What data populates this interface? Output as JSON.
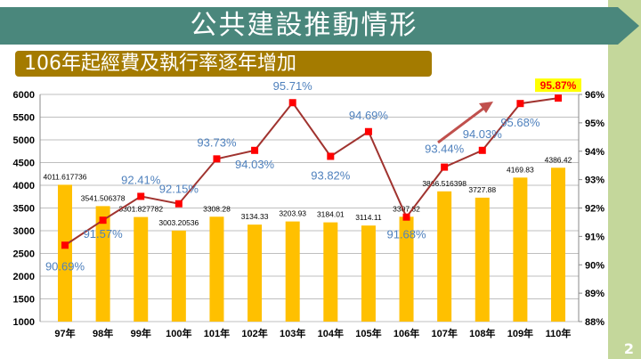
{
  "header": {
    "title": "公共建設推動情形",
    "subtitle": "106年起經費及執行率逐年增加",
    "page_number": "2"
  },
  "colors": {
    "bar": "#ffc000",
    "line": "#a0332f",
    "marker": "#ff0000",
    "pct_label": "#4f81bd",
    "banner": "#4a877c",
    "subtitle_bg": "#a47b00",
    "strip": "#c4d79b",
    "highlight": "#ffff00",
    "arrow": "#c0504d"
  },
  "chart_data": {
    "type": "bar+line",
    "categories": [
      "97年",
      "98年",
      "99年",
      "100年",
      "101年",
      "102年",
      "103年",
      "104年",
      "105年",
      "106年",
      "107年",
      "108年",
      "109年",
      "110年"
    ],
    "series": [
      {
        "type": "bar",
        "axis": "left",
        "values": [
          4011.617736,
          3541.506378,
          3301.827782,
          3003.20536,
          3308.28,
          3134.33,
          3203.93,
          3184.01,
          3114.11,
          3307.82,
          3866.516398,
          3727.88,
          4169.83,
          4386.42
        ],
        "labels": [
          "4011.617736",
          "3541.506378",
          "3301.827782",
          "3003.20536",
          "3308.28",
          "3134.33",
          "3203.93",
          "3184.01",
          "3114.11",
          "3307.82",
          "3866.516398",
          "3727.88",
          "4169.83",
          "4386.42"
        ]
      },
      {
        "type": "line",
        "axis": "right",
        "values": [
          90.69,
          91.57,
          92.41,
          92.15,
          93.73,
          94.03,
          95.71,
          93.82,
          94.69,
          91.68,
          93.44,
          94.03,
          95.68,
          95.87
        ],
        "labels": [
          "90.69%",
          "91.57%",
          "92.41%",
          "92.15%",
          "93.73%",
          "94.03%",
          "95.71%",
          "93.82%",
          "94.69%",
          "91.68%",
          "93.44%",
          "94.03%",
          "95.68%",
          "95.87%"
        ]
      }
    ],
    "left_axis": {
      "min": 1000,
      "max": 6000,
      "ticks": [
        "1000",
        "1500",
        "2000",
        "2500",
        "3000",
        "3500",
        "4000",
        "4500",
        "5000",
        "5500",
        "6000"
      ]
    },
    "right_axis": {
      "min": 88,
      "max": 96,
      "ticks": [
        "88%",
        "89%",
        "90%",
        "91%",
        "92%",
        "93%",
        "94%",
        "95%",
        "96%"
      ]
    },
    "grid": true,
    "highlighted_label": "95.87%"
  }
}
